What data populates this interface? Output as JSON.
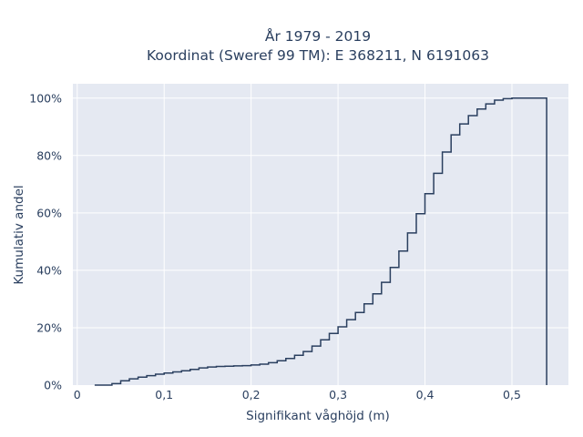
{
  "chart_data": {
    "type": "line",
    "subtype": "empirical-cdf-step",
    "title": "År 1979 - 2019",
    "subtitle": "Koordinat (Sweref 99 TM): E 368211, N 6191063",
    "xlabel": "Signifikant våghöjd (m)",
    "ylabel": "Kumulativ andel",
    "xlim": [
      -0.005,
      0.565
    ],
    "ylim": [
      0,
      1.05
    ],
    "x_ticks": [
      0,
      0.1,
      0.2,
      0.3,
      0.4,
      0.5
    ],
    "x_tick_labels": [
      "0",
      "0,1",
      "0,2",
      "0,3",
      "0,4",
      "0,5"
    ],
    "y_ticks": [
      0,
      0.2,
      0.4,
      0.6,
      0.8,
      1.0
    ],
    "y_tick_labels": [
      "0%",
      "20%",
      "40%",
      "60%",
      "80%",
      "100%"
    ],
    "grid": true,
    "colors": {
      "plot_bg": "#e5e9f2",
      "grid": "#ffffff",
      "line": "#2a3f5f"
    },
    "series": [
      {
        "x": [
          0.02,
          0.04,
          0.05,
          0.06,
          0.07,
          0.08,
          0.09,
          0.1,
          0.11,
          0.12,
          0.13,
          0.14,
          0.15,
          0.16,
          0.17,
          0.18,
          0.19,
          0.2,
          0.21,
          0.22,
          0.23,
          0.24,
          0.25,
          0.26,
          0.27,
          0.28,
          0.29,
          0.3,
          0.31,
          0.32,
          0.33,
          0.34,
          0.35,
          0.36,
          0.37,
          0.38,
          0.39,
          0.4,
          0.41,
          0.42,
          0.43,
          0.44,
          0.45,
          0.46,
          0.47,
          0.48,
          0.49,
          0.5,
          0.54
        ],
        "y": [
          0.0,
          0.005,
          0.015,
          0.022,
          0.028,
          0.033,
          0.038,
          0.042,
          0.046,
          0.05,
          0.055,
          0.06,
          0.063,
          0.065,
          0.066,
          0.067,
          0.068,
          0.07,
          0.073,
          0.078,
          0.085,
          0.093,
          0.104,
          0.117,
          0.136,
          0.158,
          0.18,
          0.203,
          0.228,
          0.253,
          0.283,
          0.318,
          0.358,
          0.41,
          0.467,
          0.53,
          0.597,
          0.667,
          0.738,
          0.812,
          0.872,
          0.91,
          0.939,
          0.962,
          0.98,
          0.993,
          0.998,
          1.0,
          0.0
        ]
      }
    ]
  }
}
